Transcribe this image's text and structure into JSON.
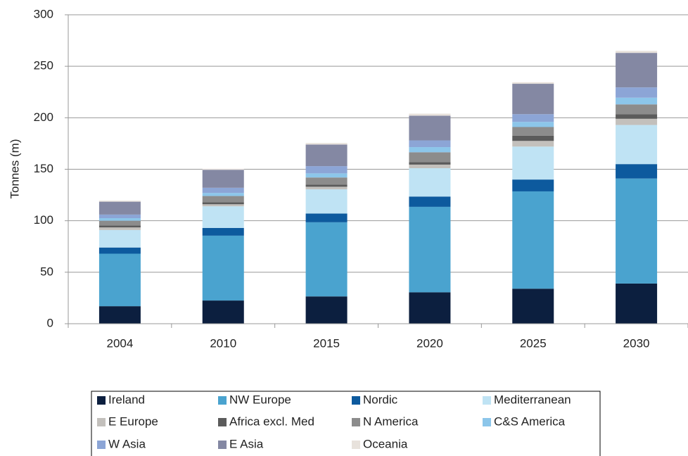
{
  "chart_data": {
    "type": "stacked_bar",
    "y_label": "Tonnes (m)",
    "categories": [
      "2004",
      "2010",
      "2015",
      "2020",
      "2025",
      "2030"
    ],
    "series": [
      {
        "name": "Ireland",
        "color": "#0c1f3f",
        "values": [
          17,
          22.5,
          26.5,
          30.5,
          34,
          39
        ]
      },
      {
        "name": "NW Europe",
        "color": "#4aa3cf",
        "values": [
          51,
          63,
          72,
          83,
          94.5,
          102
        ]
      },
      {
        "name": "Nordic",
        "color": "#0d5a9e",
        "values": [
          6,
          7.5,
          8.5,
          10,
          11.5,
          14
        ]
      },
      {
        "name": "Mediterranean",
        "color": "#bfe3f4",
        "values": [
          17,
          21,
          23.5,
          27.5,
          32,
          38
        ]
      },
      {
        "name": "E Europe",
        "color": "#c3c0bc",
        "values": [
          2.5,
          2,
          2.5,
          3.5,
          5.5,
          6
        ]
      },
      {
        "name": "Africa excl. Med",
        "color": "#5b5b5b",
        "values": [
          2,
          2,
          2,
          2.5,
          5,
          4.5
        ]
      },
      {
        "name": "N America",
        "color": "#8c8c8c",
        "values": [
          4.5,
          6,
          7,
          9.5,
          8.5,
          9.5
        ]
      },
      {
        "name": "C&S America",
        "color": "#8cc6ea",
        "values": [
          2.5,
          3,
          4,
          5,
          5,
          6.5
        ]
      },
      {
        "name": "W Asia",
        "color": "#8ca5d6",
        "values": [
          3.5,
          5,
          7,
          6.5,
          7.5,
          10
        ]
      },
      {
        "name": "E Asia",
        "color": "#8488a3",
        "values": [
          12.5,
          17.5,
          21,
          24,
          29.5,
          33.5
        ]
      },
      {
        "name": "Oceania",
        "color": "#e8e2dc",
        "values": [
          1,
          1,
          1.5,
          2,
          1.5,
          2
        ]
      }
    ],
    "ylim": [
      0,
      300
    ],
    "yticks": [
      0,
      50,
      100,
      150,
      200,
      250,
      300
    ],
    "grid": true,
    "legend": "bottom"
  }
}
